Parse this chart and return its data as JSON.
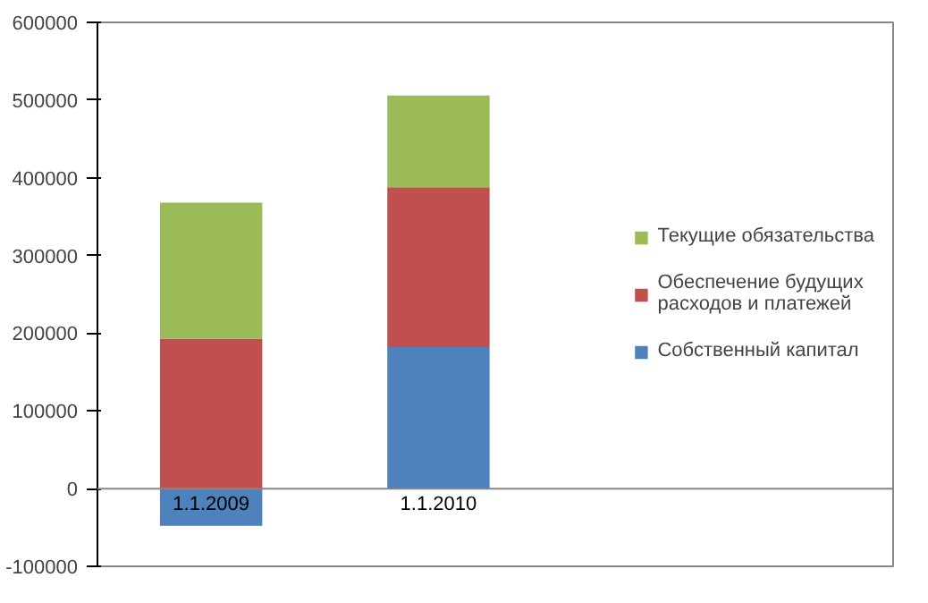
{
  "chart_data": {
    "type": "bar",
    "stacked": true,
    "categories": [
      "1.1.2009",
      "1.1.2010"
    ],
    "series": [
      {
        "name": "Собственный капитал",
        "color": "#4f81bd",
        "values": [
          -48000,
          182000
        ]
      },
      {
        "name": "Обеспечение будущих расходов и платежей",
        "color": "#c0504d",
        "values": [
          193000,
          206000
        ]
      },
      {
        "name": "Текущие обязательства",
        "color": "#9bbb59",
        "values": [
          175000,
          118000
        ]
      }
    ],
    "ylim": [
      -100000,
      600000
    ],
    "yticks": [
      -100000,
      0,
      100000,
      200000,
      300000,
      400000,
      500000,
      600000
    ],
    "grid": false,
    "legend": "right"
  }
}
